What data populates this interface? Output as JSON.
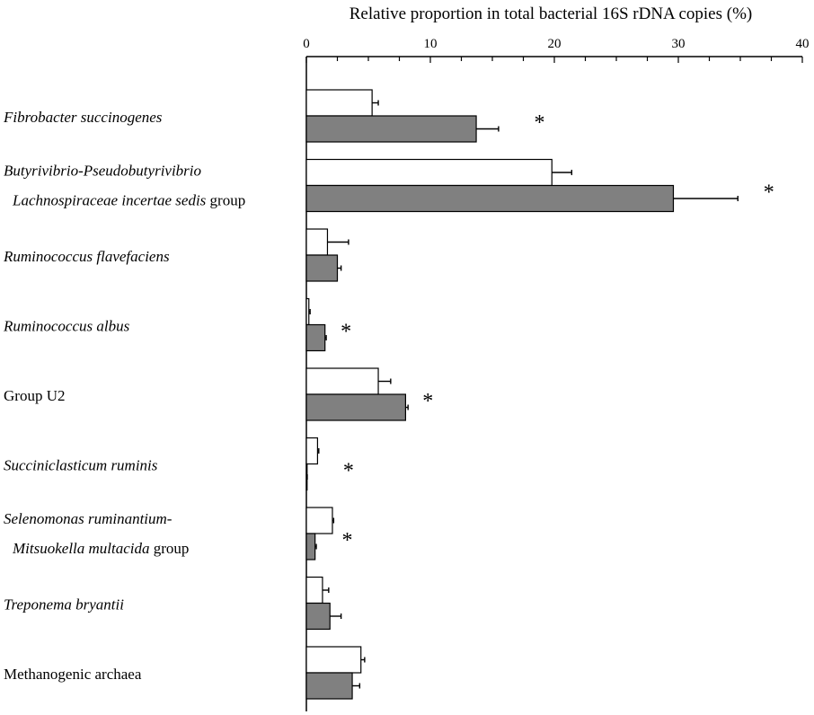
{
  "chart_data": {
    "type": "bar",
    "orientation": "horizontal",
    "title": "",
    "xlabel": "Relative proportion in total bacterial 16S rDNA copies (%)",
    "ylabel": "",
    "xlim": [
      0,
      40
    ],
    "xticks": [
      0,
      10,
      20,
      30,
      40
    ],
    "axis_position": "top",
    "grid": false,
    "legend": "none",
    "categories": [
      {
        "lines": [
          [
            {
              "text": "Fibrobacter succinogenes",
              "italic": true
            }
          ]
        ]
      },
      {
        "lines": [
          [
            {
              "text": "Butyrivibrio-Pseudobutyrivibrio",
              "italic": true
            }
          ],
          [
            {
              "text": "Lachnospiraceae incertae sedis",
              "italic": true
            },
            {
              "text": " group",
              "italic": false
            }
          ]
        ]
      },
      {
        "lines": [
          [
            {
              "text": "Ruminococcus flavefaciens",
              "italic": true
            }
          ]
        ]
      },
      {
        "lines": [
          [
            {
              "text": "Ruminococcus albus",
              "italic": true
            }
          ]
        ]
      },
      {
        "lines": [
          [
            {
              "text": "Group U2",
              "italic": false
            }
          ]
        ]
      },
      {
        "lines": [
          [
            {
              "text": "Succiniclasticum ruminis",
              "italic": true
            }
          ]
        ]
      },
      {
        "lines": [
          [
            {
              "text": "Selenomonas ruminantium-",
              "italic": true
            }
          ],
          [
            {
              "text": "Mitsuokella multacida",
              "italic": true
            },
            {
              "text": " group",
              "italic": false
            }
          ]
        ]
      },
      {
        "lines": [
          [
            {
              "text": "Treponema bryantii",
              "italic": true
            }
          ]
        ]
      },
      {
        "lines": [
          [
            {
              "text": "Methanogenic archaea",
              "italic": false
            }
          ]
        ]
      }
    ],
    "series": [
      {
        "fill": "#ffffff",
        "values": [
          5.3,
          19.8,
          1.7,
          0.2,
          5.8,
          0.9,
          2.1,
          1.3,
          4.4
        ],
        "errors": [
          0.5,
          1.6,
          1.7,
          0.1,
          1.0,
          0.1,
          0.1,
          0.5,
          0.3
        ]
      },
      {
        "fill": "#808080",
        "values": [
          13.7,
          29.6,
          2.5,
          1.5,
          8.0,
          0.05,
          0.7,
          1.9,
          3.7
        ],
        "errors": [
          1.8,
          5.2,
          0.3,
          0.1,
          0.2,
          0.02,
          0.1,
          0.9,
          0.6
        ]
      }
    ],
    "annotations": [
      {
        "text": "*",
        "category_index": 0,
        "x": 18.8
      },
      {
        "text": "*",
        "category_index": 1,
        "x": 37.3
      },
      {
        "text": "*",
        "category_index": 3,
        "x": 3.2
      },
      {
        "text": "*",
        "category_index": 4,
        "x": 9.8
      },
      {
        "text": "*",
        "category_index": 5,
        "x": 3.4
      },
      {
        "text": "*",
        "category_index": 6,
        "x": 3.3
      }
    ]
  }
}
